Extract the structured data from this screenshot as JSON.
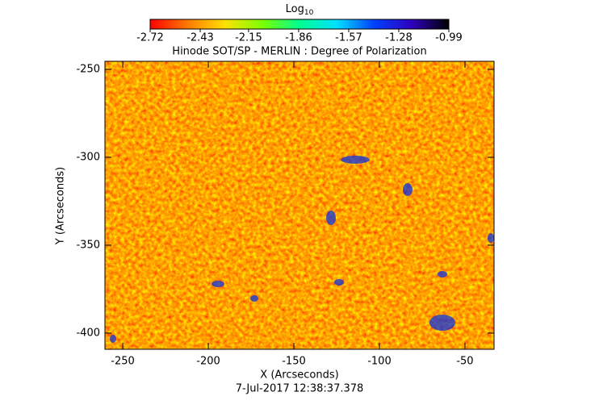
{
  "chart_data": {
    "type": "heatmap",
    "title": "Hinode SOT/SP - MERLIN : Degree of Polarization",
    "x_label": "X (Arcseconds)",
    "y_label": "Y (Arcseconds)",
    "timestamp": "7-Jul-2017 12:38:37.378",
    "xlim": [
      -260.4,
      -33
    ],
    "xticks": [
      -250,
      -200,
      -150,
      -100,
      -50
    ],
    "ylim": [
      -409.2,
      -245.4
    ],
    "yticks": [
      -400,
      -350,
      -300,
      -250
    ],
    "colorbar": {
      "title": "Log",
      "title_subscript": "10",
      "lim": [
        -2.72,
        -0.99
      ],
      "ticks": [
        -2.72,
        -2.43,
        -2.15,
        -1.86,
        -1.57,
        -1.28,
        -0.99
      ],
      "colors": [
        "#ff0000",
        "#ff7a00",
        "#ffe000",
        "#7cff00",
        "#00ff90",
        "#00e0ff",
        "#0040ff",
        "#3000c0",
        "#000000"
      ]
    }
  }
}
